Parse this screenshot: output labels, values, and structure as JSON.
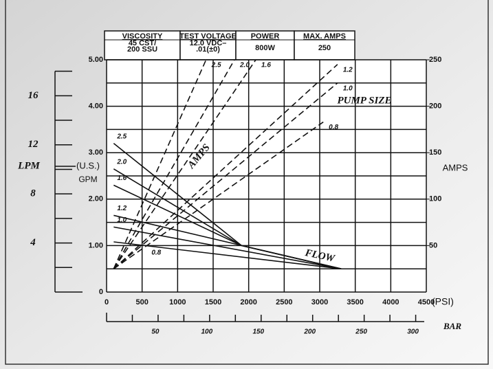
{
  "chart_data": {
    "type": "line",
    "spec_table": {
      "headers": [
        "VISCOSITY",
        "TEST VOLTAGE",
        "POWER",
        "MAX. AMPS"
      ],
      "cells": [
        [
          "45 CST/",
          "200 SSU"
        ],
        [
          "12.0 VDC–",
          ".01(±0)"
        ],
        [
          "800W"
        ],
        [
          "250"
        ]
      ]
    },
    "xlabel": "(PSI)",
    "xlim": [
      0,
      4500
    ],
    "xticks": [
      0,
      500,
      1000,
      1500,
      2000,
      2500,
      3000,
      3500,
      4000,
      4500
    ],
    "x2label": "BAR",
    "x2lim": [
      0,
      310.3
    ],
    "x2ticks": [
      {
        "value": 50,
        "label": "50"
      },
      {
        "value": 100,
        "label": "100"
      },
      {
        "value": 150,
        "label": "150"
      },
      {
        "value": 200,
        "label": "200"
      },
      {
        "value": 250,
        "label": "250"
      },
      {
        "value": 300,
        "label": "300"
      }
    ],
    "x2minor": [
      25,
      75,
      125,
      175,
      225,
      275
    ],
    "ylabel": [
      "(U.S.)",
      "GPM"
    ],
    "ylim": [
      0,
      5
    ],
    "yticks": [
      0,
      {
        "value": 1,
        "label": "1.00"
      },
      {
        "value": 2,
        "label": "2.00"
      },
      {
        "value": 3,
        "label": "3.00"
      },
      {
        "value": 4,
        "label": "4.00"
      },
      {
        "value": 5,
        "label": "5.00"
      }
    ],
    "ygrid": [
      0.5,
      1.5,
      2.5,
      3.5,
      4.5
    ],
    "y2label": "AMPS",
    "y2lim": [
      0,
      250
    ],
    "y2ticks": [
      50,
      100,
      150,
      200,
      250
    ],
    "y3label": "LPM",
    "y3lim": [
      0,
      18.93
    ],
    "y3ticks": [
      4,
      8,
      12,
      16
    ],
    "y3minor": [
      0,
      2,
      6,
      10,
      14,
      18
    ],
    "grid": true,
    "color": "#111111",
    "annotations": [
      "AMPS",
      "PUMP SIZE",
      "FLOW"
    ],
    "series": [
      {
        "name": "2.5",
        "axis": "y",
        "style": "solid",
        "x": [
          100,
          1900,
          3300
        ],
        "values": [
          3.2,
          1.0,
          0.5
        ]
      },
      {
        "name": "2.0",
        "axis": "y",
        "style": "solid",
        "x": [
          100,
          1900,
          3300
        ],
        "values": [
          2.65,
          1.0,
          0.5
        ]
      },
      {
        "name": "1.6",
        "axis": "y",
        "style": "solid",
        "x": [
          100,
          1900,
          3300
        ],
        "values": [
          2.3,
          1.0,
          0.5
        ]
      },
      {
        "name": "1.2",
        "axis": "y",
        "style": "solid",
        "x": [
          100,
          3300
        ],
        "values": [
          1.65,
          0.5
        ]
      },
      {
        "name": "1.0",
        "axis": "y",
        "style": "solid",
        "x": [
          100,
          3300
        ],
        "values": [
          1.4,
          0.5
        ]
      },
      {
        "name": "0.8",
        "axis": "y",
        "style": "solid",
        "x": [
          100,
          3300
        ],
        "values": [
          1.08,
          0.5
        ]
      },
      {
        "name": "2.5",
        "axis": "y2",
        "style": "dashed",
        "x": [
          100,
          1400
        ],
        "values": [
          25,
          250
        ]
      },
      {
        "name": "2.0",
        "axis": "y2",
        "style": "dashed",
        "x": [
          100,
          1800
        ],
        "values": [
          25,
          250
        ]
      },
      {
        "name": "1.6",
        "axis": "y2",
        "style": "dashed",
        "x": [
          100,
          2100
        ],
        "values": [
          25,
          250
        ]
      },
      {
        "name": "1.2",
        "axis": "y2",
        "style": "dashed",
        "x": [
          100,
          3250
        ],
        "values": [
          25,
          245
        ]
      },
      {
        "name": "1.0",
        "axis": "y2",
        "style": "dashed",
        "x": [
          100,
          3250
        ],
        "values": [
          25,
          225
        ]
      },
      {
        "name": "0.8",
        "axis": "y2",
        "style": "dashed",
        "x": [
          100,
          3050
        ],
        "values": [
          25,
          183
        ]
      }
    ]
  }
}
